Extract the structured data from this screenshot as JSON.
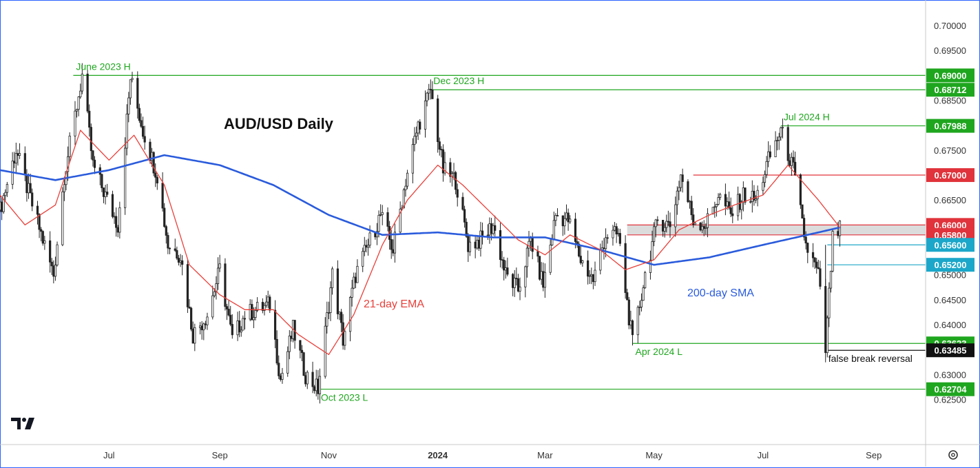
{
  "chart_data": {
    "type": "candlestick",
    "title": "AUD/USD Daily",
    "ylim": [
      0.6205,
      0.7025
    ],
    "y_ticks": [
      "0.70000",
      "0.69500",
      "0.68500",
      "0.67500",
      "0.66500",
      "0.65000",
      "0.64500",
      "0.64000",
      "0.63000",
      "0.62500"
    ],
    "x_ticks": [
      {
        "label": "Jul",
        "x": "2023-07-01",
        "bold": false
      },
      {
        "label": "Sep",
        "x": "2023-09-01",
        "bold": false
      },
      {
        "label": "Nov",
        "x": "2023-11-01",
        "bold": false
      },
      {
        "label": "2024",
        "x": "2024-01-01",
        "bold": true
      },
      {
        "label": "Mar",
        "x": "2024-03-01",
        "bold": false
      },
      {
        "label": "May",
        "x": "2024-05-01",
        "bold": false
      },
      {
        "label": "Jul",
        "x": "2024-07-01",
        "bold": false
      },
      {
        "label": "Sep",
        "x": "2024-09-01",
        "bold": false
      }
    ],
    "x_range": [
      "2023-05-01",
      "2024-09-30"
    ],
    "price_path": [
      [
        "2023-05-01",
        0.663
      ],
      [
        "2023-05-10",
        0.675
      ],
      [
        "2023-05-19",
        0.664
      ],
      [
        "2023-05-31",
        0.65
      ],
      [
        "2023-06-06",
        0.67
      ],
      [
        "2023-06-16",
        0.69
      ],
      [
        "2023-06-22",
        0.672
      ],
      [
        "2023-06-30",
        0.665
      ],
      [
        "2023-07-06",
        0.66
      ],
      [
        "2023-07-13",
        0.6895
      ],
      [
        "2023-07-20",
        0.679
      ],
      [
        "2023-07-28",
        0.67
      ],
      [
        "2023-08-03",
        0.656
      ],
      [
        "2023-08-10",
        0.654
      ],
      [
        "2023-08-17",
        0.638
      ],
      [
        "2023-08-25",
        0.642
      ],
      [
        "2023-09-01",
        0.651
      ],
      [
        "2023-09-08",
        0.637
      ],
      [
        "2023-09-15",
        0.642
      ],
      [
        "2023-09-22",
        0.643
      ],
      [
        "2023-09-29",
        0.644
      ],
      [
        "2023-10-05",
        0.629
      ],
      [
        "2023-10-12",
        0.639
      ],
      [
        "2023-10-19",
        0.63
      ],
      [
        "2023-10-26",
        0.627
      ],
      [
        "2023-11-03",
        0.65
      ],
      [
        "2023-11-09",
        0.637
      ],
      [
        "2023-11-16",
        0.65
      ],
      [
        "2023-11-23",
        0.656
      ],
      [
        "2023-11-30",
        0.662
      ],
      [
        "2023-12-07",
        0.655
      ],
      [
        "2023-12-14",
        0.669
      ],
      [
        "2023-12-21",
        0.68
      ],
      [
        "2023-12-28",
        0.6871
      ],
      [
        "2024-01-04",
        0.671
      ],
      [
        "2024-01-11",
        0.669
      ],
      [
        "2024-01-18",
        0.656
      ],
      [
        "2024-01-25",
        0.657
      ],
      [
        "2024-02-01",
        0.66
      ],
      [
        "2024-02-08",
        0.65
      ],
      [
        "2024-02-15",
        0.647
      ],
      [
        "2024-02-22",
        0.657
      ],
      [
        "2024-02-29",
        0.648
      ],
      [
        "2024-03-07",
        0.662
      ],
      [
        "2024-03-14",
        0.661
      ],
      [
        "2024-03-21",
        0.653
      ],
      [
        "2024-03-28",
        0.649
      ],
      [
        "2024-04-04",
        0.658
      ],
      [
        "2024-04-11",
        0.658
      ],
      [
        "2024-04-19",
        0.6362
      ],
      [
        "2024-04-26",
        0.65
      ],
      [
        "2024-05-03",
        0.661
      ],
      [
        "2024-05-10",
        0.66
      ],
      [
        "2024-05-16",
        0.67
      ],
      [
        "2024-05-23",
        0.661
      ],
      [
        "2024-05-30",
        0.66
      ],
      [
        "2024-06-06",
        0.666
      ],
      [
        "2024-06-13",
        0.662
      ],
      [
        "2024-06-20",
        0.666
      ],
      [
        "2024-06-27",
        0.665
      ],
      [
        "2024-07-04",
        0.673
      ],
      [
        "2024-07-11",
        0.679
      ],
      [
        "2024-07-18",
        0.671
      ],
      [
        "2024-07-25",
        0.656
      ],
      [
        "2024-08-01",
        0.65
      ],
      [
        "2024-08-05",
        0.6348
      ],
      [
        "2024-08-09",
        0.657
      ],
      [
        "2024-08-13",
        0.659
      ]
    ],
    "ema_path": [
      [
        "2023-05-01",
        0.666
      ],
      [
        "2023-05-15",
        0.66
      ],
      [
        "2023-06-01",
        0.664
      ],
      [
        "2023-06-15",
        0.679
      ],
      [
        "2023-07-01",
        0.673
      ],
      [
        "2023-07-15",
        0.678
      ],
      [
        "2023-08-01",
        0.668
      ],
      [
        "2023-08-15",
        0.652
      ],
      [
        "2023-09-01",
        0.646
      ],
      [
        "2023-09-15",
        0.643
      ],
      [
        "2023-10-01",
        0.643
      ],
      [
        "2023-10-15",
        0.638
      ],
      [
        "2023-11-01",
        0.634
      ],
      [
        "2023-11-15",
        0.642
      ],
      [
        "2023-12-01",
        0.656
      ],
      [
        "2023-12-15",
        0.665
      ],
      [
        "2024-01-01",
        0.672
      ],
      [
        "2024-01-15",
        0.668
      ],
      [
        "2024-02-01",
        0.662
      ],
      [
        "2024-02-15",
        0.657
      ],
      [
        "2024-03-01",
        0.654
      ],
      [
        "2024-03-15",
        0.658
      ],
      [
        "2024-04-01",
        0.655
      ],
      [
        "2024-04-15",
        0.651
      ],
      [
        "2024-05-01",
        0.653
      ],
      [
        "2024-05-15",
        0.659
      ],
      [
        "2024-06-01",
        0.662
      ],
      [
        "2024-06-15",
        0.664
      ],
      [
        "2024-07-01",
        0.666
      ],
      [
        "2024-07-15",
        0.672
      ],
      [
        "2024-08-01",
        0.665
      ],
      [
        "2024-08-13",
        0.6595
      ]
    ],
    "sma_path": [
      [
        "2023-05-01",
        0.671
      ],
      [
        "2023-06-01",
        0.669
      ],
      [
        "2023-07-01",
        0.671
      ],
      [
        "2023-08-01",
        0.674
      ],
      [
        "2023-09-01",
        0.672
      ],
      [
        "2023-10-01",
        0.668
      ],
      [
        "2023-11-01",
        0.662
      ],
      [
        "2023-12-01",
        0.658
      ],
      [
        "2024-01-01",
        0.6585
      ],
      [
        "2024-02-01",
        0.6575
      ],
      [
        "2024-03-01",
        0.6575
      ],
      [
        "2024-04-01",
        0.655
      ],
      [
        "2024-05-01",
        0.652
      ],
      [
        "2024-06-01",
        0.6535
      ],
      [
        "2024-07-01",
        0.656
      ],
      [
        "2024-08-01",
        0.6585
      ],
      [
        "2024-08-13",
        0.6595
      ]
    ],
    "indicators": [
      {
        "name": "21-day EMA",
        "color": "#e8403a"
      },
      {
        "name": "200-day SMA",
        "color": "#2a5bdc"
      }
    ],
    "levels": [
      {
        "value": "0.69000",
        "color": "#1fa61f",
        "from": "2023-06-11",
        "label": "June 2023 H"
      },
      {
        "value": "0.68712",
        "color": "#1fa61f",
        "from": "2023-12-28",
        "label": "Dec 2023 H"
      },
      {
        "value": "0.67988",
        "color": "#1fa61f",
        "from": "2024-07-11",
        "label": "Jul 2024 H"
      },
      {
        "value": "0.67000",
        "color": "#e0333b",
        "from": "2024-05-23",
        "label": ""
      },
      {
        "value": "0.66000",
        "color": "#e0333b",
        "from": "2024-04-16",
        "label": ""
      },
      {
        "value": "0.65800",
        "color": "#e0333b",
        "from": "2024-04-16",
        "label": ""
      },
      {
        "value": "0.65600",
        "color": "#1ba7c9",
        "from": "2024-08-06",
        "label": ""
      },
      {
        "value": "0.65200",
        "color": "#1ba7c9",
        "from": "2024-08-06",
        "label": ""
      },
      {
        "value": "0.63623",
        "color": "#1fa61f",
        "from": "2024-04-19",
        "label": "Apr 2024 L"
      },
      {
        "value": "0.63485",
        "color": "#111111",
        "from": "2024-08-05",
        "label": "false break reversal"
      },
      {
        "value": "0.62704",
        "color": "#1fa61f",
        "from": "2023-10-26",
        "label": "Oct 2023 L"
      }
    ],
    "zone": {
      "from": "2024-04-16",
      "low": 0.658,
      "high": 0.66,
      "color": "#dcdcdc"
    },
    "colors": {
      "bull": "#222222",
      "bear": "#222222",
      "grid": "#e6e6e6",
      "accent": "#2a62ff"
    },
    "grid": false,
    "legend": "none"
  },
  "ui": {
    "logo": "TradingView",
    "settings_icon": "gear-icon"
  }
}
